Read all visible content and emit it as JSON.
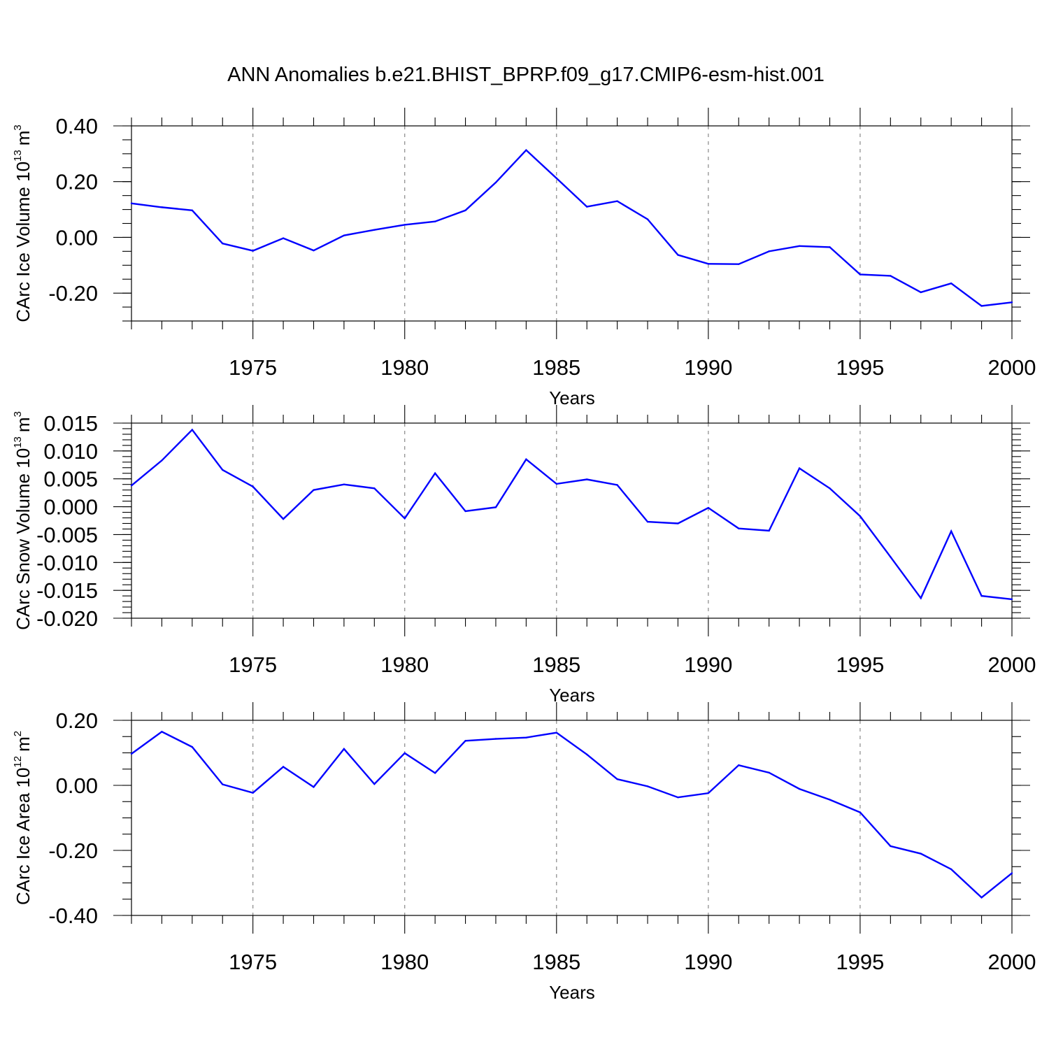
{
  "title": "ANN Anomalies b.e21.BHIST_BPRP.f09_g17.CMIP6-esm-hist.001",
  "chart_data": [
    {
      "type": "line",
      "ylabel_main": "CArc Ice Volume 10",
      "ylabel_exp": "13",
      "ylabel_unit": "m",
      "ylabel_unit_exp": "3",
      "xlabel": "Years",
      "xlim": [
        1971,
        2000
      ],
      "ylim": [
        -0.3,
        0.4
      ],
      "yticks": [
        0.4,
        0.2,
        0.0,
        -0.2
      ],
      "ytick_labels": [
        "0.40",
        "0.20",
        "0.00",
        "-0.20"
      ],
      "yminor_step": 0.05,
      "xticks": [
        1975,
        1980,
        1985,
        1990,
        1995,
        2000
      ],
      "xtick_labels": [
        "1975",
        "1980",
        "1985",
        "1990",
        "1995",
        "2000"
      ],
      "grid_x": [
        1975,
        1980,
        1985,
        1990,
        1995
      ],
      "color": "#0000ff",
      "x": [
        1971,
        1972,
        1973,
        1974,
        1975,
        1976,
        1977,
        1978,
        1979,
        1980,
        1981,
        1982,
        1983,
        1984,
        1985,
        1986,
        1987,
        1988,
        1989,
        1990,
        1991,
        1992,
        1993,
        1994,
        1995,
        1996,
        1997,
        1998,
        1999,
        2000
      ],
      "values": [
        0.122,
        0.108,
        0.097,
        -0.022,
        -0.048,
        -0.003,
        -0.047,
        0.007,
        0.027,
        0.045,
        0.057,
        0.097,
        0.197,
        0.313,
        0.212,
        0.11,
        0.13,
        0.065,
        -0.063,
        -0.095,
        -0.096,
        -0.05,
        -0.031,
        -0.035,
        -0.133,
        -0.138,
        -0.197,
        -0.165,
        -0.246,
        -0.233
      ]
    },
    {
      "type": "line",
      "ylabel_main": "CArc Snow Volume 10",
      "ylabel_exp": "13",
      "ylabel_unit": "m",
      "ylabel_unit_exp": "3",
      "xlabel": "Years",
      "xlim": [
        1971,
        2000
      ],
      "ylim": [
        -0.02,
        0.015
      ],
      "yticks": [
        0.015,
        0.01,
        0.005,
        0.0,
        -0.005,
        -0.01,
        -0.015,
        -0.02
      ],
      "ytick_labels": [
        "0.015",
        "0.010",
        "0.005",
        "0.000",
        "-0.005",
        "-0.010",
        "-0.015",
        "-0.020"
      ],
      "yminor_step": 0.001,
      "xticks": [
        1975,
        1980,
        1985,
        1990,
        1995,
        2000
      ],
      "xtick_labels": [
        "1975",
        "1980",
        "1985",
        "1990",
        "1995",
        "2000"
      ],
      "grid_x": [
        1975,
        1980,
        1985,
        1990,
        1995
      ],
      "color": "#0000ff",
      "x": [
        1971,
        1972,
        1973,
        1974,
        1975,
        1976,
        1977,
        1978,
        1979,
        1980,
        1981,
        1982,
        1983,
        1984,
        1985,
        1986,
        1987,
        1988,
        1989,
        1990,
        1991,
        1992,
        1993,
        1994,
        1995,
        1996,
        1997,
        1998,
        1999,
        2000
      ],
      "values": [
        0.0038,
        0.0083,
        0.0138,
        0.0066,
        0.0036,
        -0.0022,
        0.003,
        0.004,
        0.0033,
        -0.0021,
        0.006,
        -0.0008,
        -0.0001,
        0.0085,
        0.0041,
        0.0049,
        0.0039,
        -0.0027,
        -0.003,
        -0.0002,
        -0.0039,
        -0.0043,
        0.0069,
        0.0033,
        -0.0017,
        -0.009,
        -0.0164,
        -0.0044,
        -0.016,
        -0.0166
      ]
    },
    {
      "type": "line",
      "ylabel_main": "CArc Ice Area 10",
      "ylabel_exp": "12",
      "ylabel_unit": "m",
      "ylabel_unit_exp": "2",
      "xlabel": "Years",
      "xlim": [
        1971,
        2000
      ],
      "ylim": [
        -0.4,
        0.2
      ],
      "yticks": [
        0.2,
        0.0,
        -0.2,
        -0.4
      ],
      "ytick_labels": [
        "0.20",
        "0.00",
        "-0.20",
        "-0.40"
      ],
      "yminor_step": 0.05,
      "xticks": [
        1975,
        1980,
        1985,
        1990,
        1995,
        2000
      ],
      "xtick_labels": [
        "1975",
        "1980",
        "1985",
        "1990",
        "1995",
        "2000"
      ],
      "grid_x": [
        1975,
        1980,
        1985,
        1990,
        1995
      ],
      "color": "#0000ff",
      "x": [
        1971,
        1972,
        1973,
        1974,
        1975,
        1976,
        1977,
        1978,
        1979,
        1980,
        1981,
        1982,
        1983,
        1984,
        1985,
        1986,
        1987,
        1988,
        1989,
        1990,
        1991,
        1992,
        1993,
        1994,
        1995,
        1996,
        1997,
        1998,
        1999,
        2000
      ],
      "values": [
        0.097,
        0.165,
        0.118,
        0.003,
        -0.023,
        0.057,
        -0.005,
        0.112,
        0.004,
        0.099,
        0.038,
        0.137,
        0.143,
        0.147,
        0.162,
        0.095,
        0.019,
        -0.003,
        -0.037,
        -0.024,
        0.062,
        0.039,
        -0.011,
        -0.044,
        -0.083,
        -0.187,
        -0.21,
        -0.258,
        -0.345,
        -0.27
      ]
    }
  ]
}
